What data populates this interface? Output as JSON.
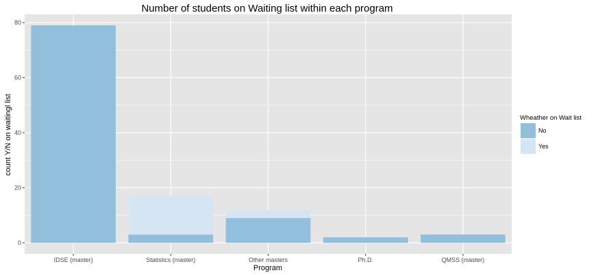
{
  "chart_data": {
    "type": "bar",
    "stacked": true,
    "title": "Number of students on Waiting list within each program",
    "xlabel": "Program",
    "ylabel": "count Y/N on waitingl list",
    "categories": [
      "IDSE (master)",
      "Statistics (master)",
      "Other masters",
      "Ph.D.",
      "QMSS (master)"
    ],
    "series": [
      {
        "name": "No",
        "values": [
          79,
          3,
          9,
          2,
          3
        ]
      },
      {
        "name": "Yes",
        "values": [
          0,
          14,
          3,
          0,
          0
        ]
      }
    ],
    "ylim": [
      -4,
      83
    ],
    "yticks": [
      0,
      20,
      40,
      60,
      80
    ],
    "grid": true,
    "legend": {
      "title": "Wheather on Wait list",
      "position": "right"
    },
    "colors": {
      "No": "#92bfdc",
      "Yes": "#d6e5f3",
      "panel": "#e5e5e5",
      "grid": "#ffffff"
    }
  }
}
